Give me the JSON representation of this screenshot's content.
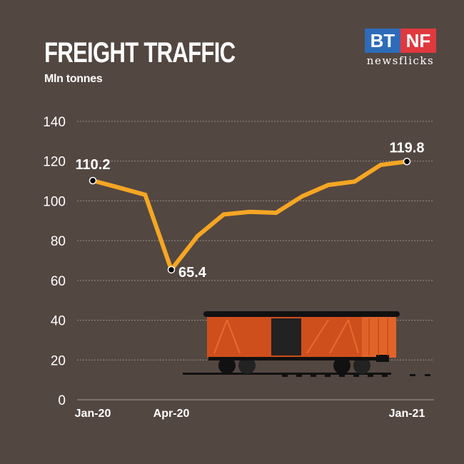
{
  "header": {
    "title": "FREIGHT TRAFFIC",
    "subtitle": "Mln tonnes"
  },
  "logo": {
    "left": "BT",
    "right": "NF",
    "tagline": "newsflicks",
    "colors": {
      "left": "#2e6bb8",
      "right": "#e0393e"
    }
  },
  "colors": {
    "background": "#534741",
    "line": "#f5a623",
    "grid": "#9a8f88"
  },
  "chart_data": {
    "type": "line",
    "title": "FREIGHT TRAFFIC",
    "subtitle": "Mln tonnes",
    "xlabel": "",
    "ylabel": "Mln tonnes",
    "ylim": [
      0,
      140
    ],
    "yticks": [
      0,
      20,
      40,
      60,
      80,
      100,
      120,
      140
    ],
    "grid": true,
    "x": [
      "Jan-20",
      "Feb-20",
      "Mar-20",
      "Apr-20",
      "May-20",
      "Jun-20",
      "Jul-20",
      "Aug-20",
      "Sep-20",
      "Oct-20",
      "Nov-20",
      "Dec-20",
      "Jan-21"
    ],
    "xtick_labels": [
      "Jan-20",
      "Apr-20",
      "Jan-21"
    ],
    "series": [
      {
        "name": "Freight traffic",
        "values": [
          110.2,
          106.7,
          103.1,
          65.4,
          82.3,
          93.2,
          94.5,
          94.0,
          102.3,
          108.0,
          109.7,
          118.1,
          119.8
        ]
      }
    ],
    "annotations": [
      {
        "x": "Jan-20",
        "label": "110.2"
      },
      {
        "x": "Apr-20",
        "label": "65.4"
      },
      {
        "x": "Jan-21",
        "label": "119.8"
      }
    ]
  }
}
